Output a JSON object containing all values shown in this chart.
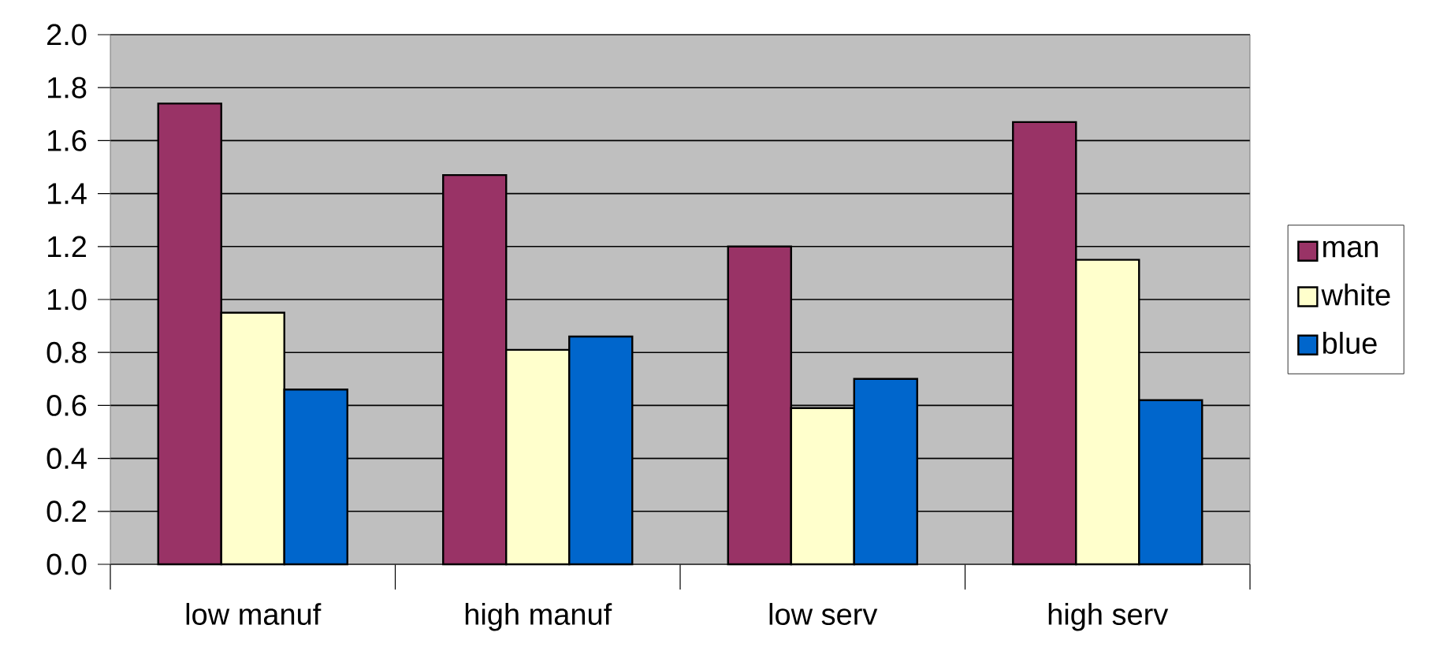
{
  "chart_data": {
    "type": "bar",
    "categories": [
      "low manuf",
      "high manuf",
      "low serv",
      "high serv"
    ],
    "series": [
      {
        "name": "man",
        "color": "#993366",
        "values": [
          1.74,
          1.47,
          1.2,
          1.67
        ]
      },
      {
        "name": "white",
        "color": "#ffffcc",
        "values": [
          0.95,
          0.81,
          0.59,
          1.15
        ]
      },
      {
        "name": "blue",
        "color": "#0066cc",
        "values": [
          0.66,
          0.86,
          0.7,
          0.62
        ]
      }
    ],
    "ylim": [
      0,
      2
    ],
    "yticks": [
      {
        "value": 0,
        "label": "0.0"
      },
      {
        "value": 0.2,
        "label": "0.2"
      },
      {
        "value": 0.4,
        "label": "0.4"
      },
      {
        "value": 0.6,
        "label": "0.6"
      },
      {
        "value": 0.8,
        "label": "0.8"
      },
      {
        "value": 1,
        "label": "1.0"
      },
      {
        "value": 1.2,
        "label": "1.2"
      },
      {
        "value": 1.4,
        "label": "1.4"
      },
      {
        "value": 1.6,
        "label": "1.6"
      },
      {
        "value": 1.8,
        "label": "1.8"
      },
      {
        "value": 2,
        "label": "2.0"
      }
    ],
    "grid": "y",
    "legend": "right"
  }
}
